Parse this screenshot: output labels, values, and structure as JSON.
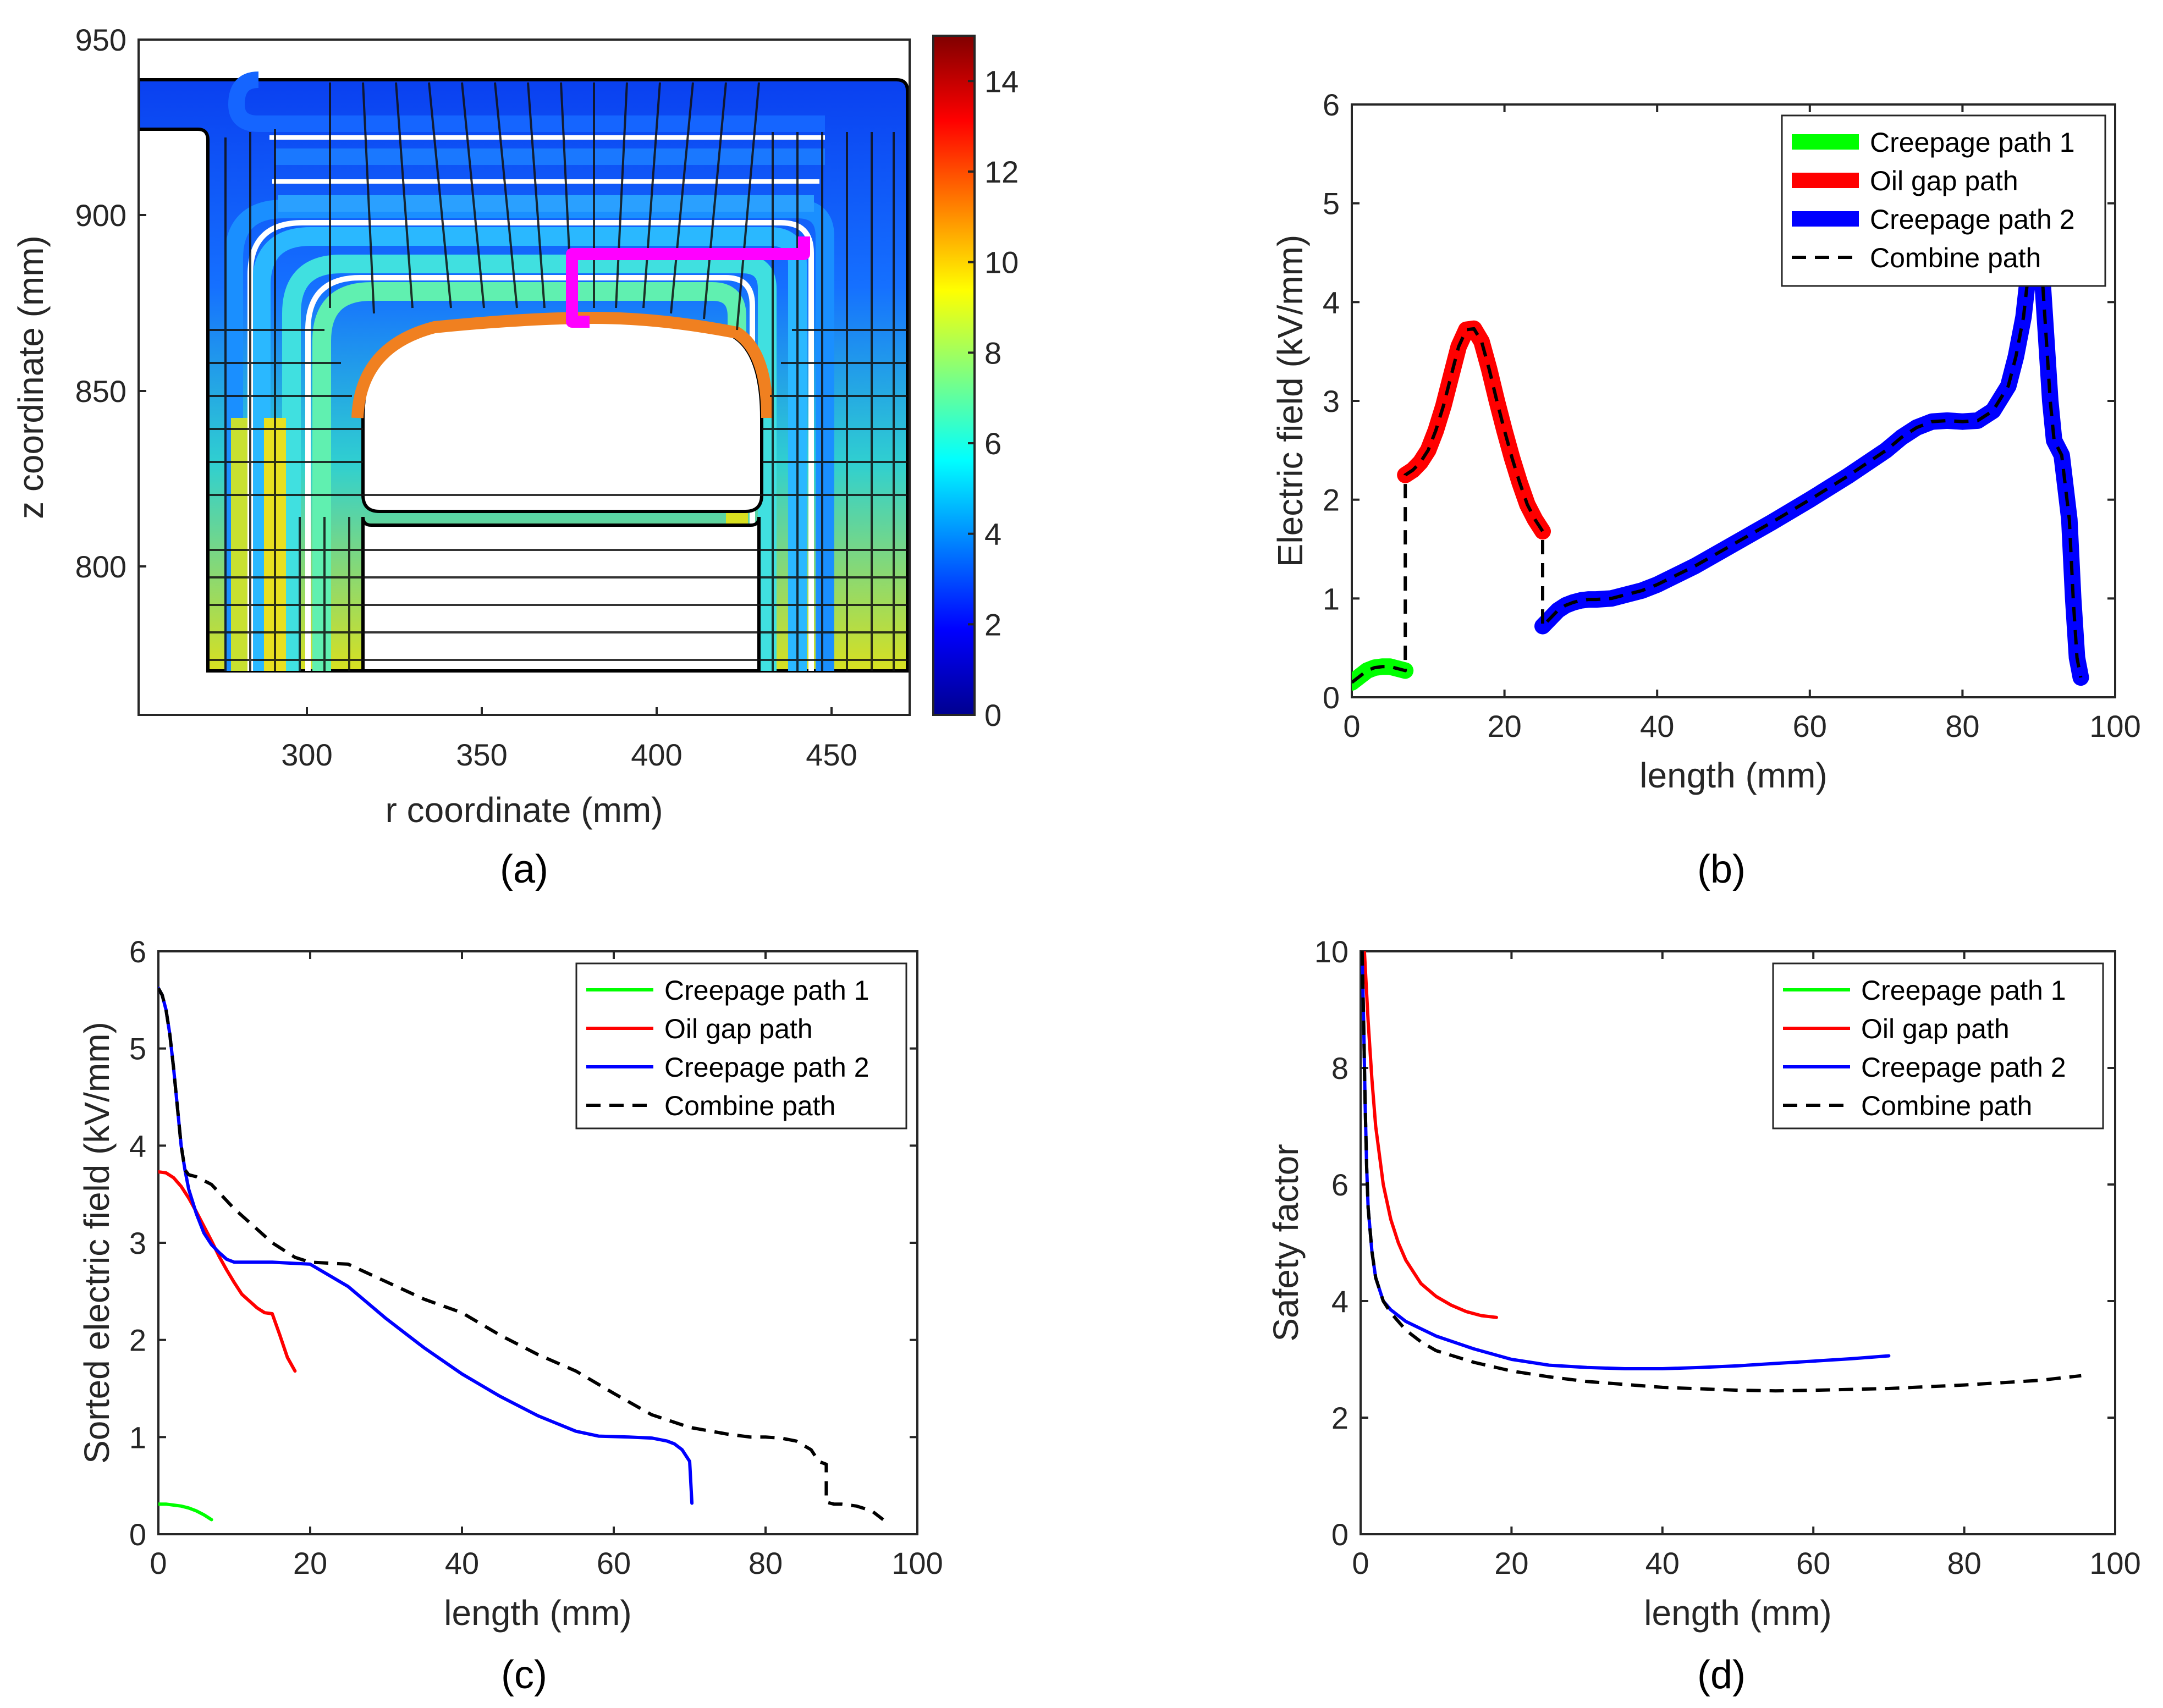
{
  "figure": {
    "captions": [
      "(a)",
      "(b)",
      "(c)",
      "(d)"
    ]
  },
  "panel_a": {
    "xlabel": "r coordinate (mm)",
    "ylabel": "z coordinate (mm)",
    "xticks": [
      "300",
      "350",
      "400",
      "450"
    ],
    "yticks": [
      "950",
      "900",
      "850",
      "800"
    ],
    "colorbar_ticks": [
      "0",
      "2",
      "4",
      "6",
      "8",
      "10",
      "12",
      "14"
    ]
  },
  "legend": {
    "creepage1": "Creepage path 1",
    "oilgap": "Oil gap path",
    "creepage2": "Creepage path 2",
    "combine": "Combine path"
  },
  "colors": {
    "green": "#00ff00",
    "red": "#ff0000",
    "blue": "#0000ff",
    "black": "#000000",
    "magenta": "#ff00ff"
  },
  "chart_data": [
    {
      "panel": "a",
      "type": "heatmap",
      "title": "",
      "xlabel": "r coordinate (mm)",
      "ylabel": "z coordinate (mm)",
      "xlim": [
        250,
        470
      ],
      "ylim": [
        770,
        950
      ],
      "colorbar": {
        "min": 0,
        "max": 15,
        "colormap": "jet",
        "ticks": [
          0,
          2,
          4,
          6,
          8,
          10,
          12,
          14
        ]
      }
    },
    {
      "panel": "b",
      "type": "line",
      "title": "",
      "xlabel": "length (mm)",
      "ylabel": "Electric field (kV/mm)",
      "xlim": [
        0,
        100
      ],
      "ylim": [
        0,
        6
      ],
      "xticks": [
        0,
        20,
        40,
        60,
        80,
        100
      ],
      "yticks": [
        0,
        1,
        2,
        3,
        4,
        5,
        6
      ],
      "legend_position": "top-right",
      "series": [
        {
          "name": "Creepage path 1",
          "style": "thick-green",
          "x": [
            0,
            1,
            2,
            3,
            4,
            5,
            6,
            7
          ],
          "y": [
            0.15,
            0.21,
            0.27,
            0.3,
            0.31,
            0.31,
            0.29,
            0.27
          ]
        },
        {
          "name": "Oil gap path",
          "style": "thick-red",
          "x": [
            7,
            8,
            9,
            10,
            11,
            12,
            13,
            14,
            15,
            16,
            17,
            18,
            19,
            20,
            21,
            22,
            23,
            24,
            25
          ],
          "y": [
            2.25,
            2.3,
            2.38,
            2.5,
            2.7,
            2.95,
            3.25,
            3.55,
            3.72,
            3.73,
            3.6,
            3.32,
            3.0,
            2.7,
            2.42,
            2.17,
            1.95,
            1.8,
            1.68
          ]
        },
        {
          "name": "Creepage path 2",
          "style": "thick-blue",
          "x": [
            25,
            26,
            27,
            28,
            29,
            30,
            31,
            32,
            34,
            36,
            38,
            40,
            45,
            50,
            55,
            60,
            65,
            70,
            72,
            74,
            76,
            78,
            80,
            82,
            84,
            86,
            87,
            88,
            88.5,
            89,
            89.5,
            90,
            90.5,
            91,
            91.5,
            92,
            93,
            94,
            94.5,
            95,
            95.5
          ],
          "y": [
            0.72,
            0.8,
            0.88,
            0.93,
            0.96,
            0.98,
            0.99,
            0.99,
            1.0,
            1.04,
            1.08,
            1.14,
            1.33,
            1.55,
            1.77,
            2.0,
            2.24,
            2.5,
            2.63,
            2.73,
            2.79,
            2.8,
            2.79,
            2.8,
            2.9,
            3.15,
            3.45,
            3.85,
            4.2,
            4.55,
            4.8,
            4.55,
            4.2,
            3.6,
            3.0,
            2.6,
            2.45,
            1.8,
            1.0,
            0.4,
            0.2
          ]
        },
        {
          "name": "Combine path",
          "style": "dashed-black",
          "x": [
            0,
            1,
            2,
            3,
            4,
            5,
            6,
            7,
            7,
            8,
            9,
            10,
            11,
            12,
            13,
            14,
            15,
            16,
            17,
            18,
            19,
            20,
            21,
            22,
            23,
            24,
            25,
            25,
            26,
            27,
            28,
            29,
            30,
            31,
            32,
            34,
            36,
            38,
            40,
            45,
            50,
            55,
            60,
            65,
            70,
            72,
            74,
            76,
            78,
            80,
            82,
            84,
            86,
            87,
            88,
            88.5,
            89,
            89.5,
            90,
            90.5,
            91,
            91.5,
            92,
            93,
            94,
            94.5,
            95,
            95.5
          ],
          "y": [
            0.15,
            0.21,
            0.27,
            0.3,
            0.31,
            0.31,
            0.29,
            0.27,
            2.25,
            2.3,
            2.38,
            2.5,
            2.7,
            2.95,
            3.25,
            3.55,
            3.72,
            3.73,
            3.6,
            3.32,
            3.0,
            2.7,
            2.42,
            2.17,
            1.95,
            1.8,
            1.68,
            0.72,
            0.8,
            0.88,
            0.93,
            0.96,
            0.98,
            0.99,
            0.99,
            1.0,
            1.04,
            1.08,
            1.14,
            1.33,
            1.55,
            1.77,
            2.0,
            2.24,
            2.5,
            2.63,
            2.73,
            2.79,
            2.8,
            2.79,
            2.8,
            2.9,
            3.15,
            3.45,
            3.85,
            4.2,
            4.55,
            4.8,
            4.55,
            4.2,
            3.6,
            3.0,
            2.6,
            2.45,
            1.8,
            1.0,
            0.4,
            0.2
          ]
        }
      ]
    },
    {
      "panel": "c",
      "type": "line",
      "title": "",
      "xlabel": "length (mm)",
      "ylabel": "Sorted electric field (kV/mm)",
      "xlim": [
        0,
        100
      ],
      "ylim": [
        0,
        6
      ],
      "xticks": [
        0,
        20,
        40,
        60,
        80,
        100
      ],
      "yticks": [
        0,
        1,
        2,
        3,
        4,
        5,
        6
      ],
      "legend_position": "top-right",
      "series": [
        {
          "name": "Creepage path 1",
          "x": [
            0,
            1,
            2,
            3,
            4,
            5,
            6,
            7
          ],
          "y": [
            0.31,
            0.31,
            0.3,
            0.29,
            0.27,
            0.24,
            0.2,
            0.15
          ]
        },
        {
          "name": "Oil gap path",
          "x": [
            0,
            1,
            2,
            3,
            4,
            5,
            6,
            7,
            8,
            9,
            10,
            11,
            12,
            13,
            14,
            15,
            16,
            17,
            18
          ],
          "y": [
            3.73,
            3.72,
            3.67,
            3.58,
            3.46,
            3.32,
            3.17,
            3.02,
            2.86,
            2.72,
            2.59,
            2.47,
            2.4,
            2.33,
            2.28,
            2.27,
            2.05,
            1.82,
            1.68
          ]
        },
        {
          "name": "Creepage path 2",
          "x": [
            0,
            0.5,
            1,
            1.5,
            2,
            2.5,
            3,
            3.5,
            4,
            5,
            6,
            7,
            8,
            9,
            10,
            15,
            20,
            25,
            30,
            35,
            40,
            45,
            50,
            55,
            58,
            62,
            65,
            67,
            68,
            69,
            70,
            70.3
          ],
          "y": [
            5.62,
            5.55,
            5.4,
            5.15,
            4.8,
            4.4,
            4.0,
            3.75,
            3.55,
            3.3,
            3.1,
            2.98,
            2.9,
            2.83,
            2.8,
            2.8,
            2.78,
            2.55,
            2.22,
            1.92,
            1.65,
            1.42,
            1.22,
            1.06,
            1.01,
            1.0,
            0.99,
            0.96,
            0.93,
            0.87,
            0.75,
            0.32
          ]
        },
        {
          "name": "Combine path",
          "x": [
            0,
            0.5,
            1,
            1.5,
            2,
            2.5,
            3,
            3.5,
            4,
            5,
            7,
            10,
            15,
            18,
            20,
            25,
            30,
            35,
            40,
            45,
            50,
            55,
            60,
            65,
            70,
            75,
            78,
            80,
            82,
            84,
            86,
            87,
            88,
            88,
            89,
            90,
            92,
            94,
            95.5
          ],
          "y": [
            5.62,
            5.55,
            5.4,
            5.15,
            4.8,
            4.4,
            4.0,
            3.75,
            3.7,
            3.68,
            3.6,
            3.35,
            3.0,
            2.85,
            2.8,
            2.78,
            2.6,
            2.42,
            2.28,
            2.05,
            1.85,
            1.68,
            1.45,
            1.23,
            1.1,
            1.03,
            1.0,
            1.0,
            0.99,
            0.96,
            0.87,
            0.75,
            0.72,
            0.33,
            0.31,
            0.31,
            0.29,
            0.24,
            0.15
          ]
        }
      ]
    },
    {
      "panel": "d",
      "type": "line",
      "title": "",
      "xlabel": "length (mm)",
      "ylabel": "Safety factor",
      "xlim": [
        0,
        100
      ],
      "ylim": [
        0,
        10
      ],
      "xticks": [
        0,
        20,
        40,
        60,
        80,
        100
      ],
      "yticks": [
        0,
        2,
        4,
        6,
        8,
        10
      ],
      "legend_position": "top-right",
      "series": [
        {
          "name": "Creepage path 1",
          "x": [
            0.2,
            0.3,
            0.5
          ],
          "y": [
            10.0,
            9.8,
            9.5
          ]
        },
        {
          "name": "Oil gap path",
          "x": [
            0.5,
            1,
            1.5,
            2,
            3,
            4,
            5,
            6,
            7,
            8,
            10,
            12,
            14,
            16,
            18
          ],
          "y": [
            10.0,
            8.8,
            7.8,
            7.0,
            6.0,
            5.4,
            5.0,
            4.7,
            4.5,
            4.3,
            4.08,
            3.93,
            3.82,
            3.75,
            3.72
          ]
        },
        {
          "name": "Creepage path 2",
          "x": [
            0.2,
            0.4,
            0.6,
            0.8,
            1,
            1.5,
            2,
            3,
            4,
            6,
            10,
            15,
            20,
            25,
            30,
            35,
            40,
            45,
            50,
            55,
            60,
            65,
            70
          ],
          "y": [
            10.0,
            8.8,
            7.4,
            6.3,
            5.6,
            4.85,
            4.4,
            4.0,
            3.85,
            3.65,
            3.4,
            3.18,
            3.0,
            2.9,
            2.86,
            2.84,
            2.84,
            2.86,
            2.89,
            2.93,
            2.97,
            3.01,
            3.06
          ]
        },
        {
          "name": "Combine path",
          "x": [
            0.2,
            0.4,
            0.6,
            0.8,
            1,
            1.5,
            2,
            3,
            4,
            6,
            8,
            10,
            15,
            20,
            25,
            30,
            40,
            50,
            55,
            60,
            70,
            80,
            90,
            95.5
          ],
          "y": [
            10.0,
            8.8,
            7.4,
            6.3,
            5.6,
            4.85,
            4.4,
            4.0,
            3.8,
            3.5,
            3.3,
            3.15,
            2.95,
            2.8,
            2.7,
            2.62,
            2.52,
            2.47,
            2.46,
            2.47,
            2.5,
            2.56,
            2.64,
            2.72
          ]
        }
      ]
    }
  ]
}
